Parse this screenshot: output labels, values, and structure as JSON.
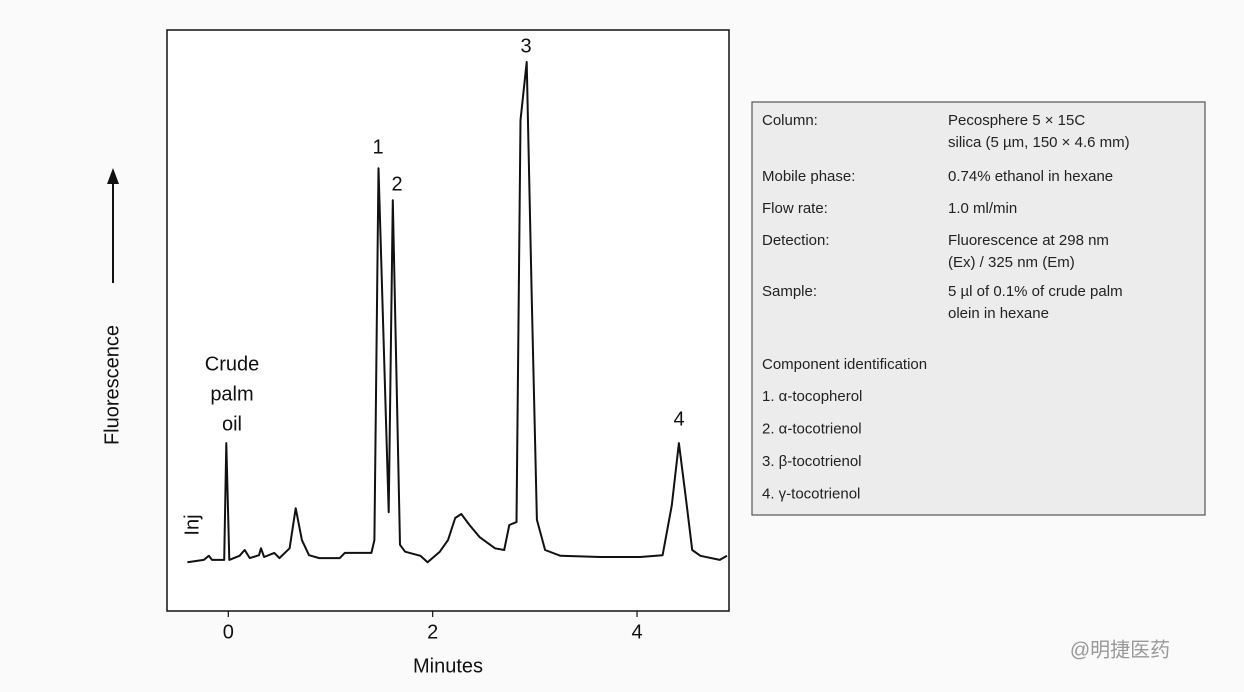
{
  "chart_data": {
    "type": "line",
    "x_label": "Minutes",
    "y_label": "Fluorescence",
    "xlim": [
      -0.6,
      4.9
    ],
    "ylim": [
      0,
      100
    ],
    "xticks": [
      0,
      2,
      4
    ],
    "x": [
      -0.4,
      -0.24,
      -0.19,
      -0.16,
      -0.04,
      -0.02,
      0.01,
      0.11,
      0.16,
      0.21,
      0.3,
      0.32,
      0.35,
      0.45,
      0.5,
      0.6,
      0.66,
      0.72,
      0.79,
      0.89,
      1.09,
      1.14,
      1.4,
      1.43,
      1.47,
      1.57,
      1.61,
      1.68,
      1.73,
      1.88,
      1.95,
      2.07,
      2.15,
      2.22,
      2.28,
      2.36,
      2.46,
      2.61,
      2.7,
      2.75,
      2.82,
      2.86,
      2.92,
      2.97,
      3.02,
      3.1,
      3.25,
      3.64,
      4.03,
      4.25,
      4.34,
      4.41,
      4.48,
      4.54,
      4.62,
      4.81,
      4.88
    ],
    "series": [
      {
        "color": "#111111",
        "values": [
          8.4,
          8.8,
          9.5,
          8.8,
          8.8,
          28.9,
          8.8,
          9.5,
          10.5,
          9.1,
          9.6,
          10.8,
          9.3,
          10.0,
          9.1,
          10.8,
          17.7,
          12.2,
          9.6,
          9.1,
          9.1,
          10.0,
          10.0,
          12.2,
          76.2,
          17.0,
          70.7,
          11.4,
          10.2,
          9.5,
          8.4,
          10.2,
          12.2,
          16.0,
          16.7,
          14.8,
          12.7,
          10.8,
          10.5,
          14.8,
          15.3,
          84.5,
          94.5,
          53.5,
          15.7,
          10.5,
          9.5,
          9.3,
          9.3,
          9.6,
          18.2,
          28.9,
          19.1,
          10.5,
          9.5,
          8.8,
          9.5
        ]
      }
    ],
    "peak_labels": [
      "1",
      "2",
      "3",
      "4"
    ],
    "injection_label": "Inj",
    "sample_label": [
      "Crude",
      "palm",
      "oil"
    ]
  },
  "info_box": {
    "rows": [
      {
        "label": "Column:",
        "value": [
          "Pecosphere 5 × 15C",
          "silica (5 µm, 150 × 4.6 mm)"
        ]
      },
      {
        "label": "Mobile phase:",
        "value": [
          "0.74% ethanol in hexane"
        ]
      },
      {
        "label": "Flow rate:",
        "value": [
          "1.0 ml/min"
        ]
      },
      {
        "label": "Detection:",
        "value": [
          "Fluorescence at 298 nm",
          "(Ex) / 325 nm (Em)"
        ]
      },
      {
        "label": "Sample:",
        "value": [
          "5 µl of 0.1% of crude palm",
          "olein in hexane"
        ]
      }
    ],
    "component_title": "Component identification",
    "components": [
      "1. α-tocopherol",
      "2. α-tocotrienol",
      "3. β-tocotrienol",
      "4. γ-tocotrienol"
    ]
  },
  "watermark": "@明捷医药"
}
